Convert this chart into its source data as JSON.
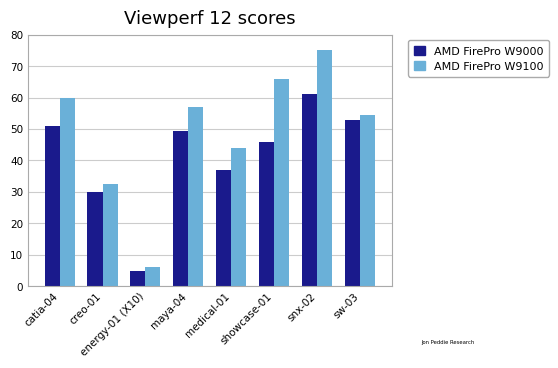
{
  "title": "Viewperf 12 scores",
  "categories": [
    "catia-04",
    "creo-01",
    "energy-01 (X10)",
    "maya-04",
    "medical-01",
    "showcase-01",
    "snx-02",
    "sw-03"
  ],
  "series": [
    {
      "label": "AMD FirePro W9000",
      "color": "#1a1a8c",
      "values": [
        51,
        30,
        5,
        49.5,
        37,
        46,
        61,
        53
      ]
    },
    {
      "label": "AMD FirePro W9100",
      "color": "#6ab0d8",
      "values": [
        60,
        32.5,
        6,
        57,
        44,
        66,
        75,
        54.5
      ]
    }
  ],
  "ylim": [
    0,
    80
  ],
  "yticks": [
    0,
    10,
    20,
    30,
    40,
    50,
    60,
    70,
    80
  ],
  "grid_color": "#cccccc",
  "background_color": "#ffffff",
  "bar_width": 0.35,
  "title_fontsize": 13,
  "tick_fontsize": 7.5,
  "legend_fontsize": 8,
  "jpr_box_color": "#cc1111"
}
